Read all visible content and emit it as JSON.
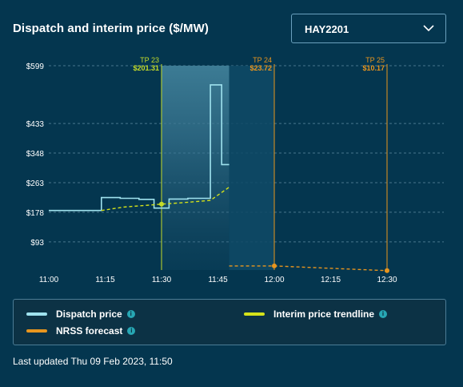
{
  "header": {
    "title": "Dispatch and interim price ($/MW)",
    "region_select": "HAY2201"
  },
  "chart_data": {
    "type": "line",
    "ylabel": "",
    "xlabel": "",
    "y_ticks": [
      "$599",
      "$433",
      "$348",
      "$263",
      "$178",
      "$93"
    ],
    "y_tick_values": [
      599,
      433,
      348,
      263,
      178,
      93
    ],
    "ylim": [
      12,
      599
    ],
    "x_ticks": [
      "11:00",
      "11:15",
      "11:30",
      "11:45",
      "12:00",
      "12:15",
      "12:30"
    ],
    "xlim": [
      "11:00",
      "12:30"
    ],
    "grid": true,
    "series": [
      {
        "name": "Dispatch price",
        "color": "#9fe2ee",
        "style": "step",
        "points": [
          [
            "11:00",
            183
          ],
          [
            "11:14",
            183
          ],
          [
            "11:14",
            220
          ],
          [
            "11:19",
            220
          ],
          [
            "11:19",
            218
          ],
          [
            "11:24",
            218
          ],
          [
            "11:24",
            215
          ],
          [
            "11:28",
            215
          ],
          [
            "11:28",
            190
          ],
          [
            "11:32",
            190
          ],
          [
            "11:32",
            216
          ],
          [
            "11:37",
            216
          ],
          [
            "11:37",
            218
          ],
          [
            "11:43",
            218
          ],
          [
            "11:43",
            544
          ],
          [
            "11:46",
            544
          ],
          [
            "11:46",
            315
          ],
          [
            "11:48",
            315
          ]
        ]
      },
      {
        "name": "Interim price trendline",
        "color": "#d4e21a",
        "style": "dashed",
        "points": [
          [
            "11:14",
            183
          ],
          [
            "11:20",
            193
          ],
          [
            "11:30",
            201.31
          ],
          [
            "11:35",
            205
          ],
          [
            "11:43",
            212
          ],
          [
            "11:48",
            250
          ]
        ]
      },
      {
        "name": "NRSS forecast",
        "color": "#e8951e",
        "style": "dashed",
        "points": [
          [
            "11:48",
            23.72
          ],
          [
            "12:00",
            23.72
          ],
          [
            "12:30",
            10.17
          ]
        ]
      }
    ],
    "markers": [
      {
        "label": "TP 23",
        "value": "$201.31",
        "time": "11:30",
        "price": 201.31,
        "color": "#c5dc2a"
      },
      {
        "label": "TP 24",
        "value": "$23.72",
        "time": "12:00",
        "price": 23.72,
        "color": "#e8951e"
      },
      {
        "label": "TP 25",
        "value": "$10.17",
        "time": "12:30",
        "price": 10.17,
        "color": "#e8951e"
      }
    ],
    "highlight_range": [
      "11:30",
      "12:00"
    ]
  },
  "legend": {
    "items": [
      {
        "label": "Dispatch price",
        "color": "#9fe2ee"
      },
      {
        "label": "Interim price trendline",
        "color": "#d4e21a"
      },
      {
        "label": "NRSS forecast",
        "color": "#e8951e"
      }
    ],
    "info_icon": "i"
  },
  "footer": {
    "updated": "Last updated Thu 09 Feb 2023, 11:50"
  }
}
